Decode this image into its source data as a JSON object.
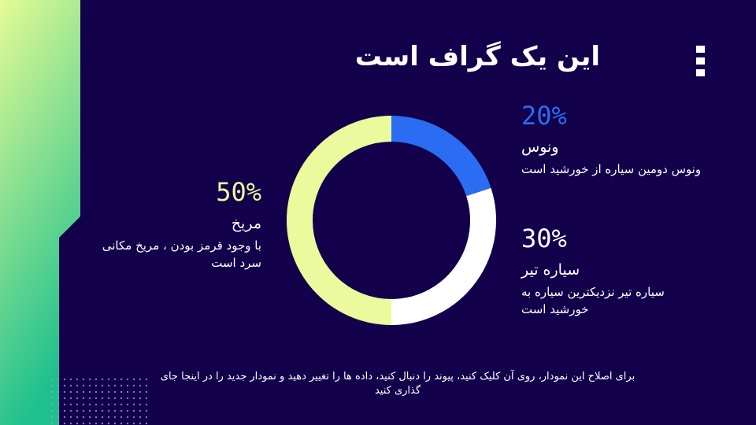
{
  "chart_data": {
    "type": "donut",
    "title": "این یک گراف است",
    "categories": [
      "ونوس",
      "سیاره تیر",
      "مریخ"
    ],
    "values": [
      20,
      30,
      50
    ],
    "value_labels": [
      "20%",
      "30%",
      "50%"
    ],
    "colors": [
      "#2a6cf2",
      "#ffffff",
      "#eafa9c"
    ],
    "descriptions": [
      "ونوس دومین سیاره از خورشید است",
      "سیاره تیر نزدیکترین سیاره به خورشید است",
      "با وجود قرمز بودن ، مریخ مکانی سرد است"
    ]
  },
  "footer": "برای اصلاح این نمودار، روی آن کلیک کنید، پیوند را دنبال کنید، داده ها را تغییر دهید و نمودار جدید را در اینجا جای گذاری کنید"
}
